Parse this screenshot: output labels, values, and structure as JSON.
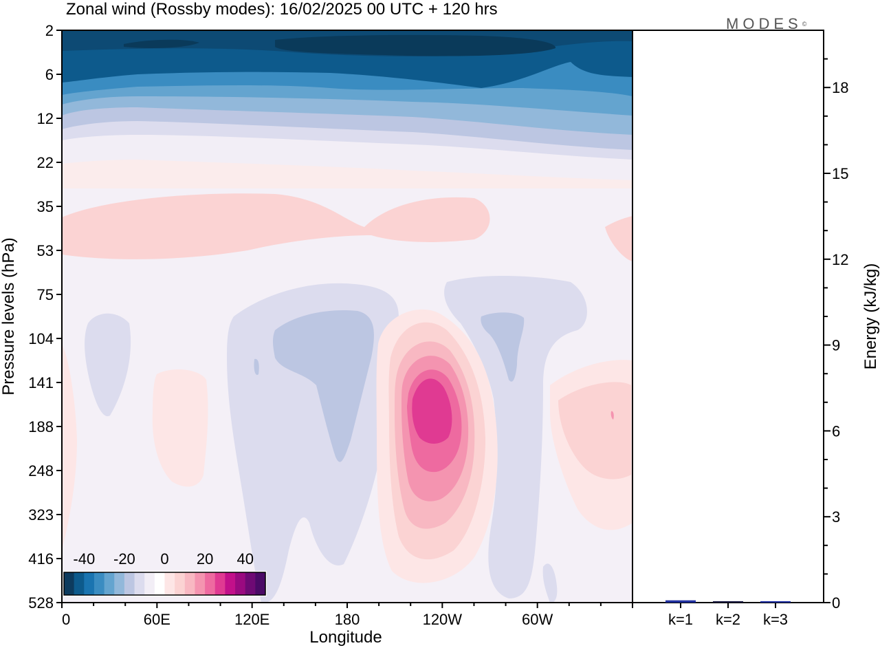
{
  "title": "Zonal wind (Rossby modes):  16/02/2025  00 UTC  + 120 hrs",
  "logo_text": "MODES",
  "logo_mark": "©",
  "chart_data": [
    {
      "type": "heatmap",
      "title": "Zonal wind (Rossby modes):  16/02/2025  00 UTC  + 120 hrs",
      "xlabel": "Longitude",
      "ylabel": "Pressure levels (hPa)",
      "x_ticks": [
        "0",
        "60E",
        "120E",
        "180",
        "120W",
        "60W"
      ],
      "y_ticks": [
        "2",
        "6",
        "12",
        "22",
        "35",
        "53",
        "75",
        "104",
        "141",
        "188",
        "248",
        "323",
        "416",
        "528"
      ],
      "xlim": [
        0,
        360
      ],
      "colorbar": {
        "labels": [
          "-40",
          "-20",
          "0",
          "20",
          "40"
        ],
        "levels": [
          -50,
          -45,
          -40,
          -35,
          -30,
          -25,
          -20,
          -15,
          -10,
          -5,
          0,
          5,
          10,
          15,
          20,
          25,
          30,
          35,
          40,
          45,
          50
        ],
        "colors": [
          "#0d3b5e",
          "#0d5a8c",
          "#1a74b0",
          "#3a8cc1",
          "#64a4cf",
          "#92b8da",
          "#bcc6e2",
          "#dcdcee",
          "#f2eef6",
          "#ffffff",
          "#fde6e6",
          "#fbd3d3",
          "#f8b8c2",
          "#f494b0",
          "#ee6aa0",
          "#e03a92",
          "#c2108a",
          "#9a0a80",
          "#6e0a74",
          "#4a0a66"
        ]
      },
      "features": [
        {
          "label": "strong easterlies upper stratosphere",
          "value": -45
        },
        {
          "label": "westerly core near 120W",
          "value": 30
        },
        {
          "label": "weak easterlies near 150E",
          "value": -10
        },
        {
          "label": "weak easterlies near 70W",
          "value": -10
        }
      ]
    },
    {
      "type": "bar",
      "categories": [
        "k=1",
        "k=2",
        "k=3"
      ],
      "values": [
        0.08,
        0.05,
        0.05
      ],
      "ylabel": "Energy (kJ/kg)",
      "y_ticks": [
        "0",
        "3",
        "6",
        "9",
        "12",
        "15",
        "18"
      ],
      "ylim": [
        0,
        20
      ],
      "bar_colors": [
        "#1f2f9f",
        "#1a1a40",
        "#1f2f9f"
      ]
    }
  ]
}
